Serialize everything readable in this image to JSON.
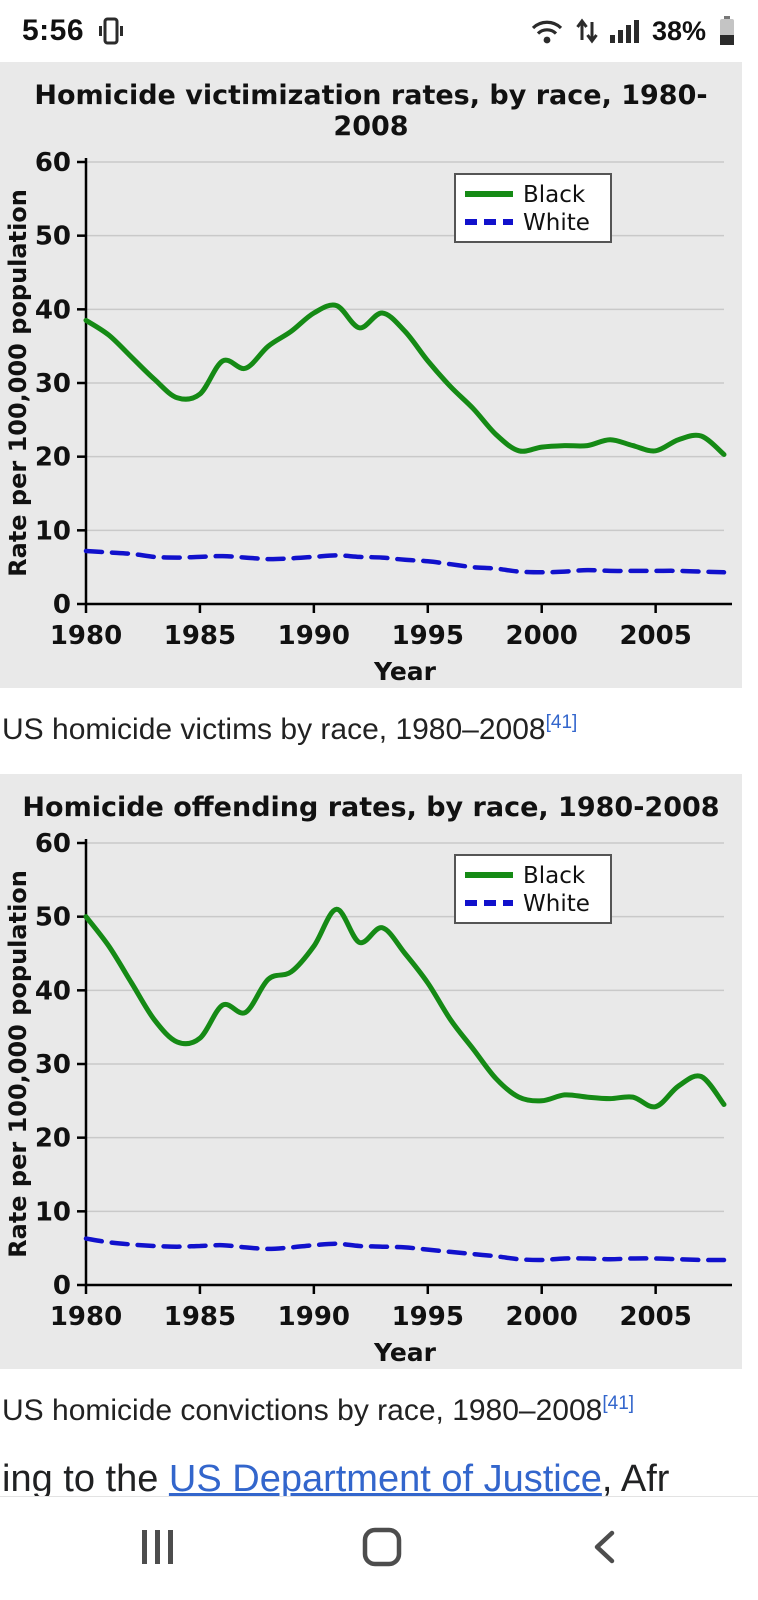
{
  "status_bar": {
    "time": "5:56",
    "battery_percent": "38%",
    "icons": [
      "notification-icon",
      "wifi-icon",
      "data-activity-icon",
      "signal-icon",
      "battery-icon"
    ]
  },
  "chart_data": [
    {
      "type": "line",
      "title": "Homicide victimization rates, by race, 1980-2008",
      "xlabel": "Year",
      "ylabel": "Rate per 100,000 population",
      "x_start": 1980,
      "x_end": 2008,
      "ylim": [
        0,
        60
      ],
      "yticks": [
        0,
        10,
        20,
        30,
        40,
        50,
        60
      ],
      "xticks": [
        1980,
        1985,
        1990,
        1995,
        2000,
        2005
      ],
      "grid": "horizontal",
      "legend_position": "top-right",
      "series": [
        {
          "name": "Black",
          "color": "#158a15",
          "style": "solid",
          "values": [
            38.5,
            36.5,
            33.5,
            30.5,
            28,
            28.5,
            33,
            32,
            35,
            37,
            39.5,
            40.5,
            37.5,
            39.5,
            37,
            33,
            29.5,
            26.5,
            23,
            20.8,
            21.3,
            21.5,
            21.5,
            22.3,
            21.5,
            20.8,
            22.3,
            22.8,
            20.3
          ]
        },
        {
          "name": "White",
          "color": "#1111cc",
          "style": "dashed",
          "values": [
            7.2,
            7.0,
            6.8,
            6.4,
            6.3,
            6.4,
            6.5,
            6.3,
            6.1,
            6.2,
            6.4,
            6.6,
            6.4,
            6.3,
            6.0,
            5.8,
            5.4,
            5.0,
            4.8,
            4.4,
            4.3,
            4.4,
            4.6,
            4.5,
            4.5,
            4.5,
            4.5,
            4.4,
            4.3
          ]
        }
      ]
    },
    {
      "type": "line",
      "title": "Homicide offending rates, by race, 1980-2008",
      "xlabel": "Year",
      "ylabel": "Rate per 100,000 population",
      "x_start": 1980,
      "x_end": 2008,
      "ylim": [
        0,
        60
      ],
      "yticks": [
        0,
        10,
        20,
        30,
        40,
        50,
        60
      ],
      "xticks": [
        1980,
        1985,
        1990,
        1995,
        2000,
        2005
      ],
      "grid": "horizontal",
      "legend_position": "top-right",
      "series": [
        {
          "name": "Black",
          "color": "#158a15",
          "style": "solid",
          "values": [
            50,
            46,
            41,
            36,
            33,
            33.5,
            38,
            37,
            41.5,
            42.5,
            46,
            51,
            46.5,
            48.5,
            45,
            41,
            36,
            32,
            28,
            25.5,
            25,
            25.8,
            25.5,
            25.3,
            25.5,
            24.2,
            27,
            28.3,
            24.5
          ]
        },
        {
          "name": "White",
          "color": "#1111cc",
          "style": "dashed",
          "values": [
            6.3,
            5.8,
            5.5,
            5.3,
            5.2,
            5.3,
            5.4,
            5.1,
            4.9,
            5.1,
            5.4,
            5.6,
            5.3,
            5.2,
            5.1,
            4.8,
            4.5,
            4.2,
            3.9,
            3.5,
            3.4,
            3.6,
            3.6,
            3.5,
            3.6,
            3.6,
            3.5,
            3.4,
            3.4
          ]
        }
      ]
    }
  ],
  "captions": [
    {
      "text": "US homicide victims by race, 1980–2008",
      "ref": "[41]"
    },
    {
      "text": "US homicide convictions by race, 1980–2008",
      "ref": "[41]"
    }
  ],
  "body_text": {
    "prefix": "ing to the ",
    "link": "US Department of Justice",
    "suffix": ", Afr"
  },
  "nav_bar": {
    "icons": [
      "recents-icon",
      "home-icon",
      "back-icon"
    ]
  },
  "colors": {
    "chart_background": "#e9e9e9",
    "black_series": "#158a15",
    "white_series": "#1111cc",
    "link": "#3366cc",
    "body_text": "#202122"
  }
}
